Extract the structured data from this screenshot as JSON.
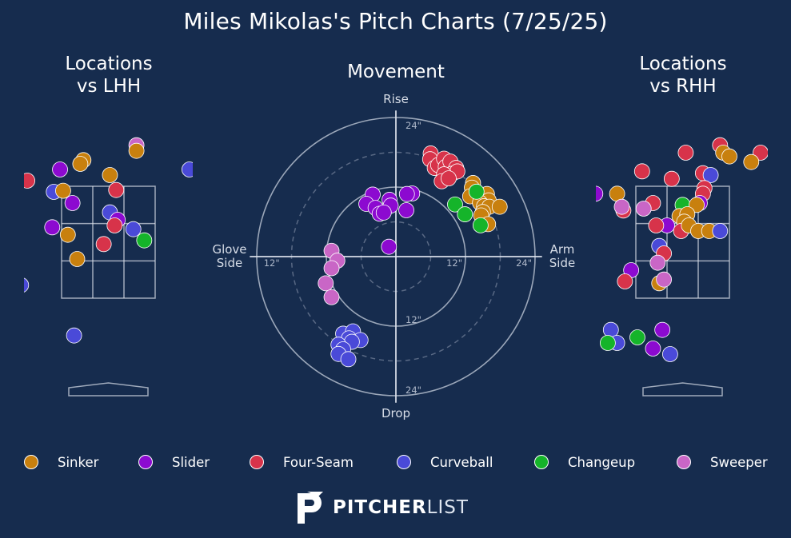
{
  "title": "Miles Mikolas's Pitch Charts (7/25/25)",
  "panels": {
    "lhh_title": "Locations\nvs LHH",
    "movement_title": "Movement",
    "rhh_title": "Locations\nvs RHH"
  },
  "movement_axes": {
    "top": "Rise",
    "bottom": "Drop",
    "left": "Glove\nSide",
    "right": "Arm\nSide",
    "ring_labels": [
      "24\"",
      "12\"",
      "12\"",
      "24\"",
      "12\"",
      "24\"",
      "24\""
    ]
  },
  "colors": {
    "background": "#162c4e",
    "Sinker": "#c8800e",
    "Slider": "#8c0ad0",
    "Four-Seam": "#d7334a",
    "Curveball": "#4a4ad8",
    "Changeup": "#15b42a",
    "Sweeper": "#c966c6"
  },
  "legend": [
    "Sinker",
    "Slider",
    "Four-Seam",
    "Curveball",
    "Changeup",
    "Sweeper"
  ],
  "brand": {
    "bold": "PITCHER",
    "light": "LIST"
  },
  "chart_data": [
    {
      "type": "scatter",
      "title": "Locations vs LHH",
      "xlabel": "",
      "ylabel": "",
      "units": "zone-relative (zone spans 0-3 horizontally and 0-3 vertically; catcher's view)",
      "points": [
        {
          "pitch": "Sweeper",
          "x": 2.4,
          "y": 4.1
        },
        {
          "pitch": "Sinker",
          "x": 2.4,
          "y": 3.95
        },
        {
          "pitch": "Sinker",
          "x": 0.7,
          "y": 3.7
        },
        {
          "pitch": "Sinker",
          "x": 0.6,
          "y": 3.6
        },
        {
          "pitch": "Slider",
          "x": -0.05,
          "y": 3.45
        },
        {
          "pitch": "Curveball",
          "x": 4.1,
          "y": 3.45
        },
        {
          "pitch": "Four-Seam",
          "x": -1.1,
          "y": 3.15
        },
        {
          "pitch": "Sinker",
          "x": 1.55,
          "y": 3.3
        },
        {
          "pitch": "Four-Seam",
          "x": 1.75,
          "y": 2.9
        },
        {
          "pitch": "Curveball",
          "x": -0.25,
          "y": 2.85
        },
        {
          "pitch": "Sinker",
          "x": 0.05,
          "y": 2.88
        },
        {
          "pitch": "Slider",
          "x": 0.35,
          "y": 2.55
        },
        {
          "pitch": "Curveball",
          "x": 1.55,
          "y": 2.3
        },
        {
          "pitch": "Slider",
          "x": 1.8,
          "y": 2.1
        },
        {
          "pitch": "Four-Seam",
          "x": 1.7,
          "y": 1.95
        },
        {
          "pitch": "Slider",
          "x": -0.3,
          "y": 1.9
        },
        {
          "pitch": "Curveball",
          "x": 2.3,
          "y": 1.85
        },
        {
          "pitch": "Sinker",
          "x": 0.2,
          "y": 1.7
        },
        {
          "pitch": "Changeup",
          "x": 2.65,
          "y": 1.55
        },
        {
          "pitch": "Four-Seam",
          "x": 1.35,
          "y": 1.45
        },
        {
          "pitch": "Sinker",
          "x": 0.5,
          "y": 1.05
        },
        {
          "pitch": "Curveball",
          "x": -1.3,
          "y": 0.35
        },
        {
          "pitch": "Curveball",
          "x": 0.4,
          "y": -1.0
        }
      ]
    },
    {
      "type": "scatter",
      "title": "Movement",
      "xlabel": "Arm Side",
      "ylabel": "Rise",
      "units": "inches (horizontal break, induced vertical break)",
      "xlim": [
        -24,
        24
      ],
      "ylim": [
        -24,
        24
      ],
      "points": [
        {
          "pitch": "Four-Seam",
          "x": 6.0,
          "y": 17.8
        },
        {
          "pitch": "Four-Seam",
          "x": 5.9,
          "y": 16.8
        },
        {
          "pitch": "Four-Seam",
          "x": 6.7,
          "y": 15.3
        },
        {
          "pitch": "Four-Seam",
          "x": 7.3,
          "y": 15.8
        },
        {
          "pitch": "Four-Seam",
          "x": 8.3,
          "y": 16.9
        },
        {
          "pitch": "Four-Seam",
          "x": 8.6,
          "y": 15.5
        },
        {
          "pitch": "Four-Seam",
          "x": 9.7,
          "y": 15.5
        },
        {
          "pitch": "Four-Seam",
          "x": 9.4,
          "y": 16.4
        },
        {
          "pitch": "Four-Seam",
          "x": 10.4,
          "y": 15.3
        },
        {
          "pitch": "Four-Seam",
          "x": 9.7,
          "y": 14.3
        },
        {
          "pitch": "Four-Seam",
          "x": 10.6,
          "y": 14.7
        },
        {
          "pitch": "Four-Seam",
          "x": 8.3,
          "y": 14.2
        },
        {
          "pitch": "Four-Seam",
          "x": 7.9,
          "y": 13.0
        },
        {
          "pitch": "Four-Seam",
          "x": 9.1,
          "y": 13.5
        },
        {
          "pitch": "Sinker",
          "x": 13.3,
          "y": 12.7
        },
        {
          "pitch": "Sinker",
          "x": 13.1,
          "y": 11.9
        },
        {
          "pitch": "Sinker",
          "x": 12.8,
          "y": 10.4
        },
        {
          "pitch": "Sinker",
          "x": 14.4,
          "y": 10.7
        },
        {
          "pitch": "Sinker",
          "x": 15.7,
          "y": 10.8
        },
        {
          "pitch": "Sinker",
          "x": 16.0,
          "y": 9.7
        },
        {
          "pitch": "Sinker",
          "x": 14.5,
          "y": 9.3
        },
        {
          "pitch": "Sinker",
          "x": 15.2,
          "y": 8.7
        },
        {
          "pitch": "Sinker",
          "x": 16.1,
          "y": 8.6
        },
        {
          "pitch": "Sinker",
          "x": 17.9,
          "y": 8.6
        },
        {
          "pitch": "Sinker",
          "x": 15.0,
          "y": 7.7
        },
        {
          "pitch": "Sinker",
          "x": 14.7,
          "y": 7.1
        },
        {
          "pitch": "Sinker",
          "x": 15.9,
          "y": 5.6
        },
        {
          "pitch": "Changeup",
          "x": 13.9,
          "y": 11.2
        },
        {
          "pitch": "Changeup",
          "x": 10.2,
          "y": 9.0
        },
        {
          "pitch": "Changeup",
          "x": 11.9,
          "y": 7.3
        },
        {
          "pitch": "Changeup",
          "x": 14.6,
          "y": 5.4
        },
        {
          "pitch": "Slider",
          "x": 2.8,
          "y": 10.9
        },
        {
          "pitch": "Slider",
          "x": 1.9,
          "y": 10.8
        },
        {
          "pitch": "Slider",
          "x": -4.0,
          "y": 10.7
        },
        {
          "pitch": "Slider",
          "x": -1.1,
          "y": 9.8
        },
        {
          "pitch": "Slider",
          "x": -0.9,
          "y": 8.8
        },
        {
          "pitch": "Slider",
          "x": -5.1,
          "y": 9.1
        },
        {
          "pitch": "Slider",
          "x": -3.5,
          "y": 8.4
        },
        {
          "pitch": "Slider",
          "x": -2.8,
          "y": 7.4
        },
        {
          "pitch": "Slider",
          "x": -2.1,
          "y": 7.6
        },
        {
          "pitch": "Slider",
          "x": 1.8,
          "y": 8.0
        },
        {
          "pitch": "Slider",
          "x": -1.2,
          "y": 1.7
        },
        {
          "pitch": "Sweeper",
          "x": -11.1,
          "y": 1.0
        },
        {
          "pitch": "Sweeper",
          "x": -10.1,
          "y": -0.7
        },
        {
          "pitch": "Sweeper",
          "x": -11.1,
          "y": -2.0
        },
        {
          "pitch": "Sweeper",
          "x": -12.1,
          "y": -4.6
        },
        {
          "pitch": "Sweeper",
          "x": -11.1,
          "y": -7.0
        },
        {
          "pitch": "Curveball",
          "x": -9.1,
          "y": -13.3
        },
        {
          "pitch": "Curveball",
          "x": -7.4,
          "y": -12.9
        },
        {
          "pitch": "Curveball",
          "x": -8.1,
          "y": -14.1
        },
        {
          "pitch": "Curveball",
          "x": -6.1,
          "y": -14.4
        },
        {
          "pitch": "Curveball",
          "x": -7.6,
          "y": -14.7
        },
        {
          "pitch": "Curveball",
          "x": -9.9,
          "y": -15.2
        },
        {
          "pitch": "Curveball",
          "x": -9.1,
          "y": -16.0
        },
        {
          "pitch": "Curveball",
          "x": -9.9,
          "y": -16.8
        },
        {
          "pitch": "Curveball",
          "x": -8.2,
          "y": -17.7
        }
      ]
    },
    {
      "type": "scatter",
      "title": "Locations vs RHH",
      "xlabel": "",
      "ylabel": "",
      "units": "zone-relative (zone spans 0-3 horizontally and 0-3 vertically; catcher's view)",
      "points": [
        {
          "pitch": "Four-Seam",
          "x": 2.7,
          "y": 4.1
        },
        {
          "pitch": "Four-Seam",
          "x": 1.6,
          "y": 3.9
        },
        {
          "pitch": "Sinker",
          "x": 2.8,
          "y": 3.9
        },
        {
          "pitch": "Sinker",
          "x": 3.0,
          "y": 3.8
        },
        {
          "pitch": "Four-Seam",
          "x": 4.0,
          "y": 3.9
        },
        {
          "pitch": "Sinker",
          "x": 3.7,
          "y": 3.65
        },
        {
          "pitch": "Four-Seam",
          "x": 0.2,
          "y": 3.4
        },
        {
          "pitch": "Four-Seam",
          "x": 1.15,
          "y": 3.2
        },
        {
          "pitch": "Four-Seam",
          "x": 2.15,
          "y": 3.35
        },
        {
          "pitch": "Curveball",
          "x": 2.4,
          "y": 3.3
        },
        {
          "pitch": "Four-Seam",
          "x": 2.2,
          "y": 2.95
        },
        {
          "pitch": "Four-Seam",
          "x": 2.15,
          "y": 2.8
        },
        {
          "pitch": "Slider",
          "x": -1.3,
          "y": 2.8
        },
        {
          "pitch": "Sinker",
          "x": -0.6,
          "y": 2.8
        },
        {
          "pitch": "Four-Seam",
          "x": 0.55,
          "y": 2.55
        },
        {
          "pitch": "Changeup",
          "x": 1.5,
          "y": 2.5
        },
        {
          "pitch": "Slider",
          "x": 2.05,
          "y": 2.55
        },
        {
          "pitch": "Sinker",
          "x": 1.95,
          "y": 2.5
        },
        {
          "pitch": "Four-Seam",
          "x": -0.4,
          "y": 2.35
        },
        {
          "pitch": "Sweeper",
          "x": -0.45,
          "y": 2.45
        },
        {
          "pitch": "Sweeper",
          "x": 0.25,
          "y": 2.4
        },
        {
          "pitch": "Sinker",
          "x": 1.4,
          "y": 2.2
        },
        {
          "pitch": "Sinker",
          "x": 1.65,
          "y": 2.25
        },
        {
          "pitch": "Sinker",
          "x": 1.55,
          "y": 2.05
        },
        {
          "pitch": "Slider",
          "x": 1.0,
          "y": 1.95
        },
        {
          "pitch": "Four-Seam",
          "x": 0.65,
          "y": 1.95
        },
        {
          "pitch": "Four-Seam",
          "x": 1.45,
          "y": 1.8
        },
        {
          "pitch": "Sinker",
          "x": 1.7,
          "y": 1.95
        },
        {
          "pitch": "Sinker",
          "x": 2.0,
          "y": 1.8
        },
        {
          "pitch": "Sinker",
          "x": 2.35,
          "y": 1.8
        },
        {
          "pitch": "Curveball",
          "x": 2.7,
          "y": 1.8
        },
        {
          "pitch": "Curveball",
          "x": 0.75,
          "y": 1.4
        },
        {
          "pitch": "Four-Seam",
          "x": 0.9,
          "y": 1.2
        },
        {
          "pitch": "Sweeper",
          "x": 0.7,
          "y": 0.95
        },
        {
          "pitch": "Slider",
          "x": -0.15,
          "y": 0.75
        },
        {
          "pitch": "Four-Seam",
          "x": -0.35,
          "y": 0.45
        },
        {
          "pitch": "Sinker",
          "x": 0.75,
          "y": 0.4
        },
        {
          "pitch": "Sweeper",
          "x": 0.9,
          "y": 0.5
        },
        {
          "pitch": "Curveball",
          "x": -0.8,
          "y": -0.85
        },
        {
          "pitch": "Curveball",
          "x": -0.6,
          "y": -1.2
        },
        {
          "pitch": "Changeup",
          "x": -0.9,
          "y": -1.2
        },
        {
          "pitch": "Changeup",
          "x": 0.05,
          "y": -1.05
        },
        {
          "pitch": "Slider",
          "x": 0.85,
          "y": -0.85
        },
        {
          "pitch": "Slider",
          "x": 0.55,
          "y": -1.35
        },
        {
          "pitch": "Curveball",
          "x": 1.1,
          "y": -1.5
        }
      ]
    }
  ]
}
